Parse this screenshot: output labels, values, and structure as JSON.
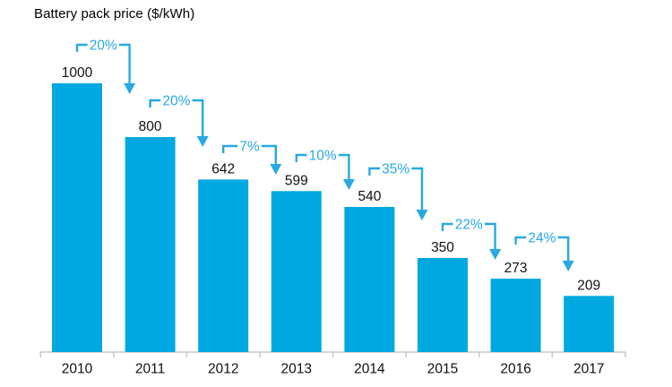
{
  "chart_data": {
    "type": "bar",
    "title": "Battery pack price ($/kWh)",
    "categories": [
      "2010",
      "2011",
      "2012",
      "2013",
      "2014",
      "2015",
      "2016",
      "2017"
    ],
    "values": [
      1000,
      800,
      642,
      599,
      540,
      350,
      273,
      209
    ],
    "annotations": [
      {
        "between": [
          "2010",
          "2011"
        ],
        "label": "20%"
      },
      {
        "between": [
          "2011",
          "2012"
        ],
        "label": "20%"
      },
      {
        "between": [
          "2012",
          "2013"
        ],
        "label": "7%"
      },
      {
        "between": [
          "2013",
          "2014"
        ],
        "label": "10%"
      },
      {
        "between": [
          "2014",
          "2015"
        ],
        "label": "35%"
      },
      {
        "between": [
          "2015",
          "2016"
        ],
        "label": "22%"
      },
      {
        "between": [
          "2016",
          "2017"
        ],
        "label": "24%"
      }
    ],
    "xlabel": "",
    "ylabel": "",
    "ylim": [
      0,
      1100
    ],
    "grid": false,
    "legend": false,
    "colors": {
      "bar": "#00A8E1",
      "annotation": "#27A9E1",
      "axis": "#C6C6C6",
      "value_text": "#111111",
      "tick_text": "#111111"
    }
  }
}
